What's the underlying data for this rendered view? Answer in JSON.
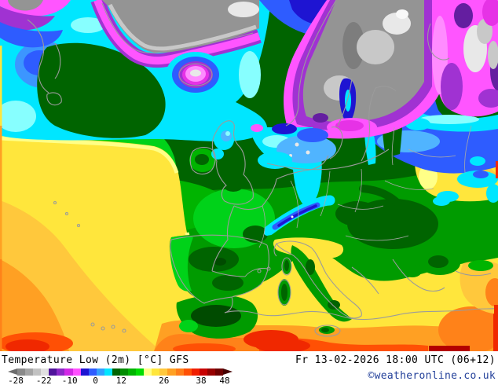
{
  "map": {
    "title": "Temperature Low (2m) [°C] GFS",
    "datetime": "Fr 13-02-2026 18:00 UTC (06+12)",
    "copyright": "©weatheronline.co.uk",
    "copyright_color": "#23409a",
    "colors": {
      "bg_green": "#009b00",
      "dark_green": "#006400",
      "deep_green": "#004b00",
      "mid_green": "#00b400",
      "bright_green": "#00d219",
      "pale_yellow": "#ffff87",
      "yellow": "#ffe63c",
      "amber": "#ffc83c",
      "orange": "#ffa023",
      "deep_orange": "#ff8219",
      "red_orange": "#ff5005",
      "red": "#f02800",
      "dark_red": "#b40000",
      "cyan": "#00e6ff",
      "pale_cyan": "#87ffff",
      "light_blue": "#50b4ff",
      "mid_blue": "#3c96ff",
      "blue": "#2e5cff",
      "dark_blue": "#1e14d2",
      "pink": "#ff55ff",
      "light_pink": "#ff8cff",
      "magenta": "#e632e6",
      "purple": "#a032d2",
      "dark_purple": "#641ea0",
      "gray": "#949494",
      "dark_gray": "#7d7d7d",
      "light_gray": "#c8c8c8",
      "near_white": "#e8e8e8",
      "white": "#f8f8f8",
      "coast": "#9b9b9b",
      "border": "#a8a8a8"
    }
  },
  "legend": {
    "unit": "°C",
    "min": -28,
    "max": 48,
    "arrow_left_color": "#6e6e6e",
    "arrow_right_color": "#460000",
    "segments": [
      "#8a8a8a",
      "#a5a5a5",
      "#c2c2c2",
      "#e0e0e0",
      "#50149b",
      "#8c28c8",
      "#d228e6",
      "#ff50ff",
      "#1e14d2",
      "#2e5cff",
      "#32a0ff",
      "#00e6ff",
      "#006400",
      "#008c00",
      "#00b400",
      "#00dc00",
      "#ffff87",
      "#ffe63c",
      "#ffc83c",
      "#ffa023",
      "#ff7d19",
      "#ff5005",
      "#f01e00",
      "#c80000",
      "#960000",
      "#6e0000"
    ],
    "ticks": [
      {
        "label": "-28",
        "pos": 3.5
      },
      {
        "label": "-22",
        "pos": 16
      },
      {
        "label": "-10",
        "pos": 27.5
      },
      {
        "label": "0",
        "pos": 39
      },
      {
        "label": "12",
        "pos": 50.5
      },
      {
        "label": "26",
        "pos": 69.5
      },
      {
        "label": "38",
        "pos": 86
      },
      {
        "label": "48",
        "pos": 96.5
      }
    ]
  }
}
